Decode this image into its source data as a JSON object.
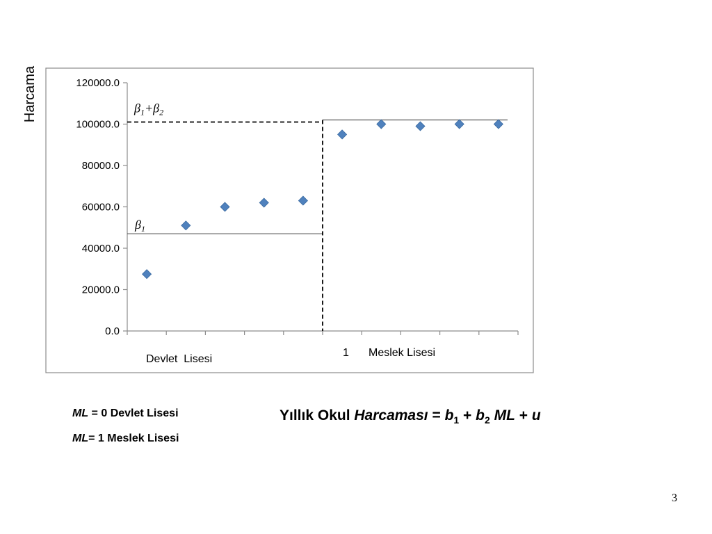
{
  "chart_data": {
    "type": "scatter",
    "ylabel": "Harcama",
    "ylim": [
      0,
      120000
    ],
    "yticks": [
      "120000.0",
      "100000.0",
      "80000.0",
      "60000.0",
      "40000.0",
      "20000.0",
      "0.0"
    ],
    "ytick_values": [
      120000,
      100000,
      80000,
      60000,
      40000,
      20000,
      0
    ],
    "x": [
      1,
      2,
      3,
      4,
      5,
      6,
      7,
      8,
      9,
      10
    ],
    "values": [
      27500,
      51000,
      60000,
      62000,
      63000,
      95000,
      100000,
      99000,
      100000,
      100000
    ],
    "marker": "diamond",
    "marker_color": "#4f81bd",
    "category_labels": {
      "left": "Devlet  Lisesi",
      "right_index": "1",
      "right": "Meslek Lisesi"
    },
    "reference_lines": [
      {
        "label": "β1",
        "y": 47000,
        "style": "solid"
      },
      {
        "label": "β1+β2",
        "y": 101000,
        "style": "dashed"
      }
    ],
    "grid": false
  },
  "legend_lines": [
    {
      "var": "ML",
      "rest": " = 0  Devlet Lisesi"
    },
    {
      "var": "ML",
      "rest": "= 1  Meslek Lisesi"
    }
  ],
  "formula": {
    "prefix": "Yıllık Okul ",
    "word": "Harcaması",
    "eq": " = ",
    "b": "b",
    "sub1": "1",
    "plus1": " + ",
    "sub2": "2",
    "ml": "ML",
    "plus2": " + ",
    "u": "u"
  },
  "page_number": "3"
}
